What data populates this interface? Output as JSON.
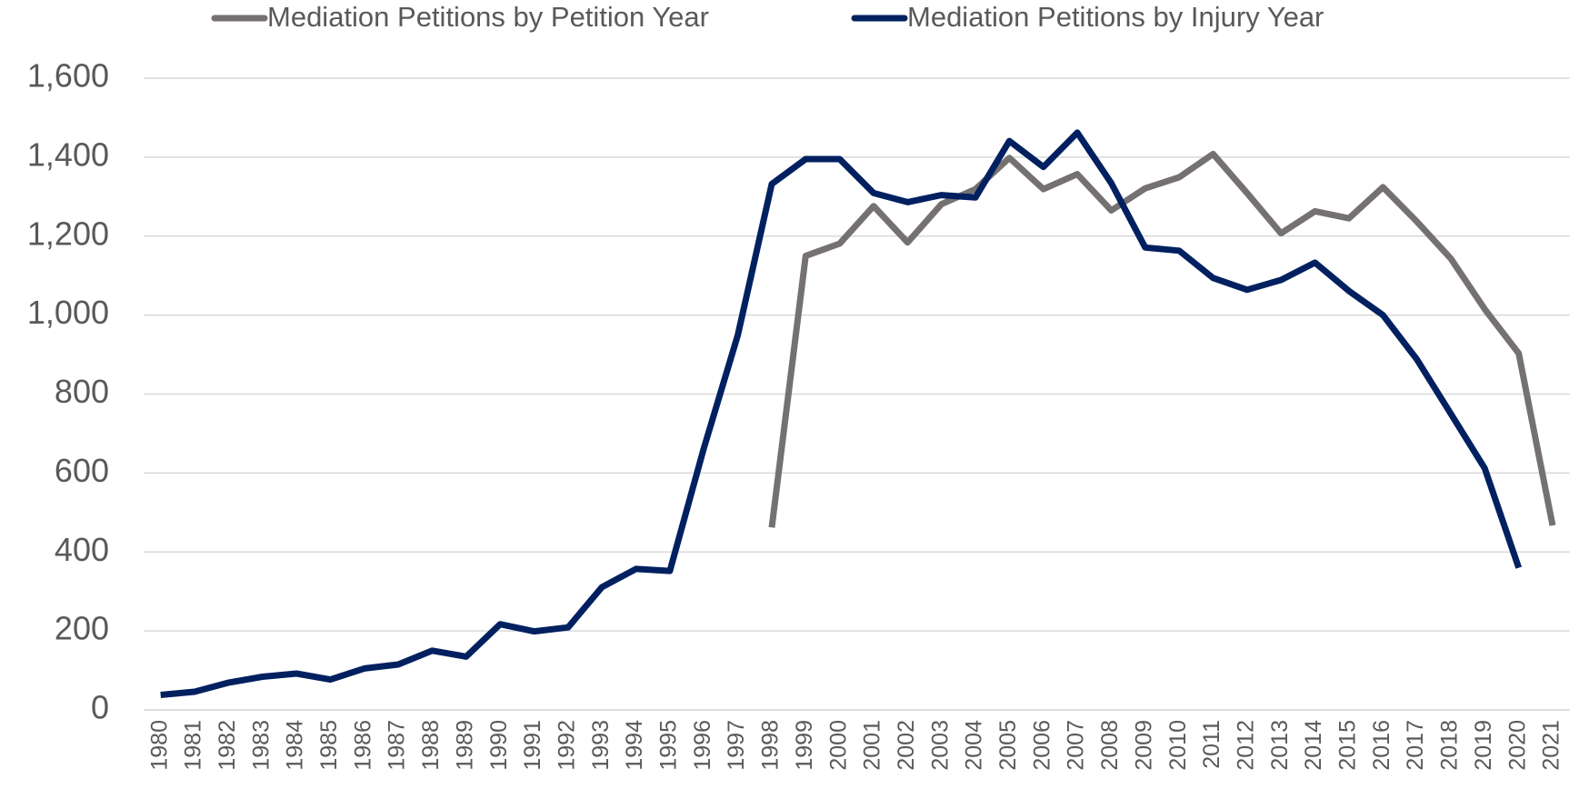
{
  "chart_data": {
    "type": "line",
    "categories": [
      "1980",
      "1981",
      "1982",
      "1983",
      "1984",
      "1985",
      "1986",
      "1987",
      "1988",
      "1989",
      "1990",
      "1991",
      "1992",
      "1993",
      "1994",
      "1995",
      "1996",
      "1997",
      "1998",
      "1999",
      "2000",
      "2001",
      "2002",
      "2003",
      "2004",
      "2005",
      "2006",
      "2007",
      "2008",
      "2009",
      "2010",
      "2011",
      "2012",
      "2013",
      "2014",
      "2015",
      "2016",
      "2017",
      "2018",
      "2019",
      "2020",
      "2021"
    ],
    "series": [
      {
        "name": "Mediation Petitions by Petition Year",
        "color": "#767171",
        "values": [
          null,
          null,
          null,
          null,
          null,
          null,
          null,
          null,
          null,
          null,
          null,
          null,
          null,
          null,
          null,
          null,
          null,
          null,
          462,
          1150,
          1181,
          1276,
          1184,
          1281,
          1319,
          1398,
          1319,
          1357,
          1265,
          1321,
          1349,
          1408,
          1309,
          1207,
          1263,
          1245,
          1324,
          1237,
          1143,
          1015,
          903,
          467
        ]
      },
      {
        "name": "Mediation Petitions by Injury Year",
        "color": "#002060",
        "values": [
          38,
          46,
          69,
          84,
          92,
          77,
          105,
          115,
          150,
          135,
          217,
          199,
          209,
          311,
          357,
          352,
          663,
          949,
          1332,
          1395,
          1395,
          1309,
          1286,
          1304,
          1298,
          1441,
          1375,
          1462,
          1334,
          1171,
          1163,
          1094,
          1064,
          1089,
          1133,
          1061,
          1000,
          888,
          750,
          612,
          360,
          null
        ]
      }
    ],
    "ylim": [
      0,
      1600
    ],
    "yticks": [
      0,
      {
        "value": 200,
        "label": "200"
      },
      400,
      600,
      800,
      {
        "value": 1000,
        "label": "1,000"
      },
      {
        "value": 1200,
        "label": "1,200"
      },
      {
        "value": 1400,
        "label": "1,400"
      },
      {
        "value": 1600,
        "label": "1,600"
      }
    ],
    "grid": true,
    "legend": "top"
  }
}
